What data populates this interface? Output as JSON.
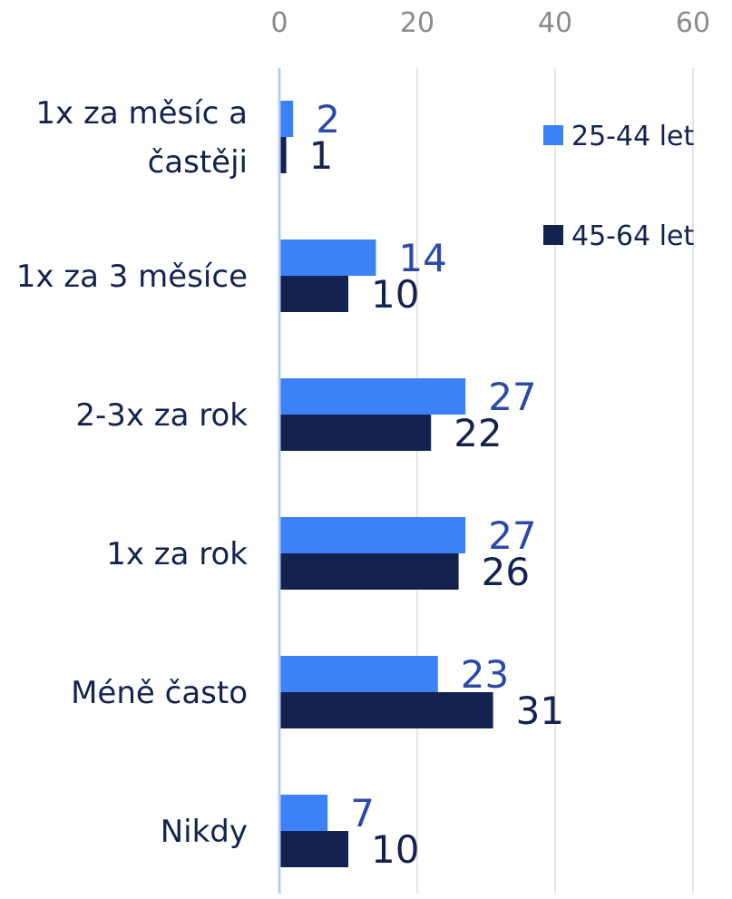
{
  "chart_data": {
    "type": "bar",
    "orientation": "horizontal",
    "categories": [
      [
        "1x za měsíc a",
        "častěji"
      ],
      [
        "1x za 3 měsíce"
      ],
      [
        "2-3x za rok"
      ],
      [
        "1x za rok"
      ],
      [
        "Méně často"
      ],
      [
        "Nikdy"
      ]
    ],
    "series": [
      {
        "name": "25-44 let",
        "color": "#3b82f6",
        "label_color": "#2b4aa8",
        "values": [
          2,
          14,
          27,
          27,
          23,
          7
        ]
      },
      {
        "name": "45-64 let",
        "color": "#14224f",
        "label_color": "#14224f",
        "values": [
          1,
          10,
          22,
          26,
          31,
          10
        ]
      }
    ],
    "xlim": [
      0,
      60
    ],
    "xticks": [
      "0",
      "20",
      "40",
      "60"
    ],
    "axis_position": "top",
    "grid": true,
    "legend": "top-right",
    "data_labels": true
  }
}
